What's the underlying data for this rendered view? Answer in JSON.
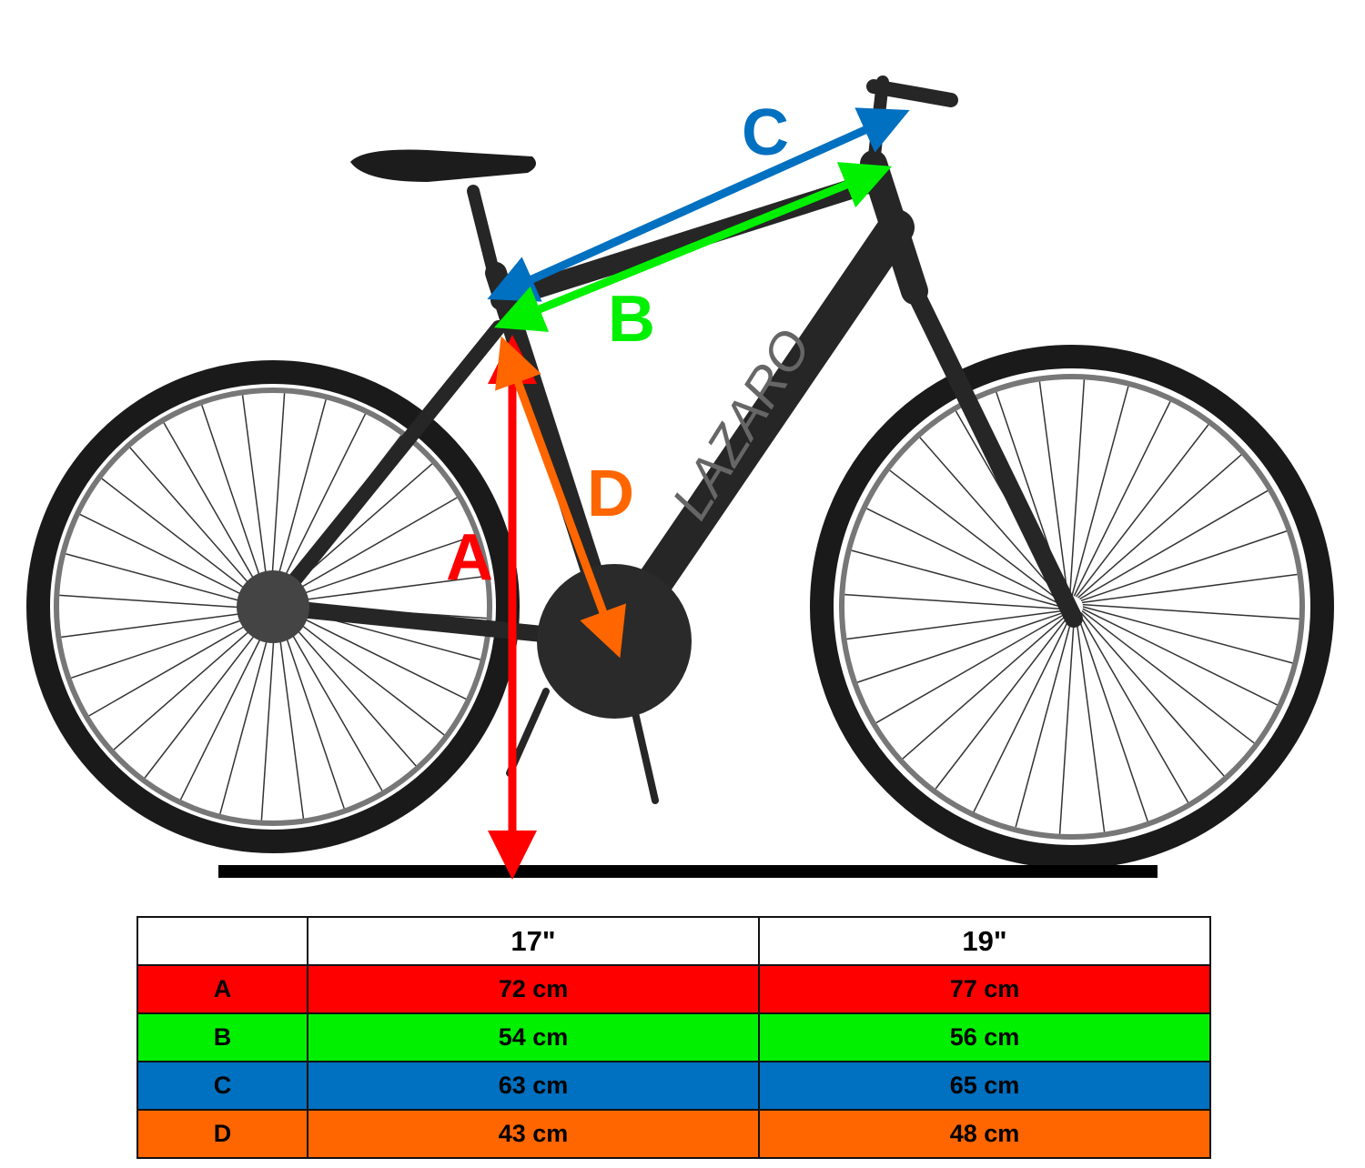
{
  "brand": "LAZARO",
  "dimension_labels": {
    "A": "A",
    "B": "B",
    "C": "C",
    "D": "D"
  },
  "colors": {
    "A": "#ff0000",
    "B": "#00f000",
    "C": "#0070c0",
    "D": "#ff6600"
  },
  "table": {
    "headers": [
      "",
      "17\"",
      "19\""
    ],
    "rows": [
      {
        "label": "A",
        "values": [
          "72 cm",
          "77 cm"
        ],
        "color": "#ff0000"
      },
      {
        "label": "B",
        "values": [
          "54 cm",
          "56 cm"
        ],
        "color": "#00f000"
      },
      {
        "label": "C",
        "values": [
          "63 cm",
          "65 cm"
        ],
        "color": "#0070c0"
      },
      {
        "label": "D",
        "values": [
          "43 cm",
          "48 cm"
        ],
        "color": "#ff6600"
      }
    ]
  }
}
